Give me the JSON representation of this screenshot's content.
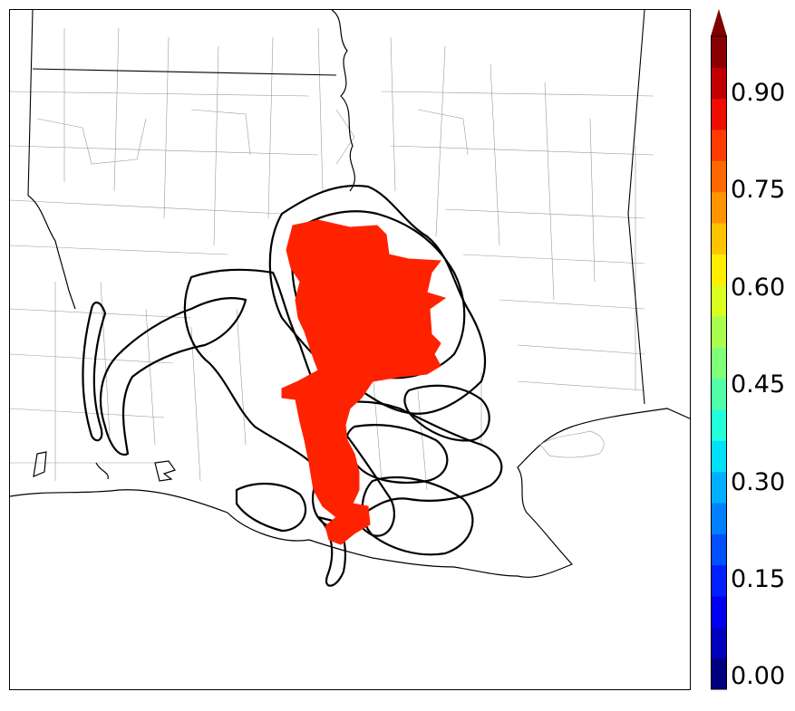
{
  "colorbar": {
    "tick_labels": [
      "0.00",
      "0.15",
      "0.30",
      "0.45",
      "0.60",
      "0.75",
      "0.90"
    ],
    "min": 0.0,
    "max": 1.0,
    "extend": "max",
    "colors": [
      "#00007f",
      "#0000bf",
      "#0000f0",
      "#0020ff",
      "#0050ff",
      "#0080ff",
      "#00b0ff",
      "#00e0f8",
      "#20ffd8",
      "#50ffa8",
      "#80ff78",
      "#a8ff50",
      "#d8ff20",
      "#ffee00",
      "#ffc400",
      "#ff9400",
      "#ff6800",
      "#ff3c00",
      "#ef0d00",
      "#c00000",
      "#8a0000"
    ],
    "extend_color": "#7f0000"
  },
  "map": {
    "land_color": "#ffffff",
    "highlight_color": "#ff2200",
    "highlight_value": 0.9,
    "contour_color": "#000000",
    "county_line_color": "#999999"
  }
}
